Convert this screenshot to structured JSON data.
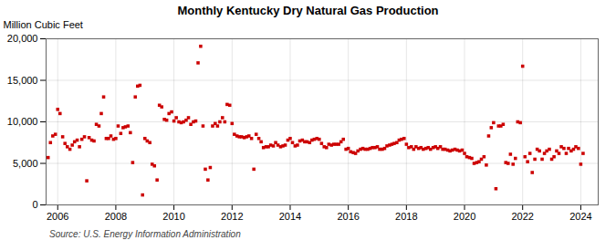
{
  "chart_data": {
    "type": "scatter",
    "title": "Monthly Kentucky Dry Natural Gas Production",
    "ylabel": "Million Cubic Feet",
    "source": "Source: U.S. Energy Information Administration",
    "color": "#cc0000",
    "marker": "square",
    "grid": true,
    "xlim": [
      2005.6,
      2024.6
    ],
    "xticks": [
      2006,
      2008,
      2010,
      2012,
      2014,
      2016,
      2018,
      2020,
      2022,
      2024
    ],
    "ylim": [
      0,
      20000
    ],
    "yticks": [
      0,
      {
        "value": 5000,
        "label": "5,000"
      },
      {
        "value": 10000,
        "label": "10,000"
      },
      {
        "value": 15000,
        "label": "15,000"
      },
      {
        "value": 20000,
        "label": "20,000"
      }
    ],
    "x": [
      2005.67,
      2005.75,
      2005.83,
      2005.92,
      2006.0,
      2006.08,
      2006.17,
      2006.25,
      2006.33,
      2006.42,
      2006.5,
      2006.58,
      2006.67,
      2006.75,
      2006.83,
      2006.92,
      2007.0,
      2007.08,
      2007.17,
      2007.25,
      2007.33,
      2007.42,
      2007.5,
      2007.58,
      2007.67,
      2007.75,
      2007.83,
      2007.92,
      2008.0,
      2008.08,
      2008.17,
      2008.25,
      2008.33,
      2008.42,
      2008.5,
      2008.58,
      2008.67,
      2008.75,
      2008.83,
      2008.92,
      2009.0,
      2009.08,
      2009.17,
      2009.25,
      2009.33,
      2009.42,
      2009.5,
      2009.58,
      2009.67,
      2009.75,
      2009.83,
      2009.92,
      2010.0,
      2010.08,
      2010.17,
      2010.25,
      2010.33,
      2010.42,
      2010.5,
      2010.58,
      2010.67,
      2010.75,
      2010.83,
      2010.92,
      2011.0,
      2011.08,
      2011.17,
      2011.25,
      2011.33,
      2011.42,
      2011.5,
      2011.58,
      2011.67,
      2011.75,
      2011.83,
      2011.92,
      2012.0,
      2012.08,
      2012.17,
      2012.25,
      2012.33,
      2012.42,
      2012.5,
      2012.58,
      2012.67,
      2012.75,
      2012.83,
      2012.92,
      2013.0,
      2013.08,
      2013.17,
      2013.25,
      2013.33,
      2013.42,
      2013.5,
      2013.58,
      2013.67,
      2013.75,
      2013.83,
      2013.92,
      2014.0,
      2014.08,
      2014.17,
      2014.25,
      2014.33,
      2014.42,
      2014.5,
      2014.58,
      2014.67,
      2014.75,
      2014.83,
      2014.92,
      2015.0,
      2015.08,
      2015.17,
      2015.25,
      2015.33,
      2015.42,
      2015.5,
      2015.58,
      2015.67,
      2015.75,
      2015.83,
      2015.92,
      2016.0,
      2016.08,
      2016.17,
      2016.25,
      2016.33,
      2016.42,
      2016.5,
      2016.58,
      2016.67,
      2016.75,
      2016.83,
      2016.92,
      2017.0,
      2017.08,
      2017.17,
      2017.25,
      2017.33,
      2017.42,
      2017.5,
      2017.58,
      2017.67,
      2017.75,
      2017.83,
      2017.92,
      2018.0,
      2018.08,
      2018.17,
      2018.25,
      2018.33,
      2018.42,
      2018.5,
      2018.58,
      2018.67,
      2018.75,
      2018.83,
      2018.92,
      2019.0,
      2019.08,
      2019.17,
      2019.25,
      2019.33,
      2019.42,
      2019.5,
      2019.58,
      2019.67,
      2019.75,
      2019.83,
      2019.92,
      2020.0,
      2020.08,
      2020.17,
      2020.25,
      2020.33,
      2020.42,
      2020.5,
      2020.58,
      2020.67,
      2020.75,
      2020.83,
      2020.92,
      2021.0,
      2021.08,
      2021.17,
      2021.25,
      2021.33,
      2021.42,
      2021.5,
      2021.58,
      2021.67,
      2021.75,
      2021.83,
      2021.92,
      2022.0,
      2022.08,
      2022.17,
      2022.25,
      2022.33,
      2022.42,
      2022.5,
      2022.58,
      2022.67,
      2022.75,
      2022.83,
      2022.92,
      2023.0,
      2023.08,
      2023.17,
      2023.25,
      2023.33,
      2023.42,
      2023.5,
      2023.58,
      2023.67,
      2023.75,
      2023.83,
      2023.92,
      2024.0,
      2024.08
    ],
    "values": [
      5700,
      7500,
      8300,
      8500,
      11500,
      11000,
      8200,
      7400,
      7000,
      6700,
      7200,
      7600,
      7800,
      7000,
      7900,
      8200,
      2900,
      8100,
      7800,
      7700,
      9700,
      9500,
      11000,
      13000,
      8000,
      8000,
      8300,
      7900,
      8000,
      9500,
      8600,
      9300,
      9400,
      9500,
      8700,
      5100,
      13000,
      14300,
      14400,
      1200,
      8000,
      7700,
      7500,
      4900,
      4700,
      3000,
      12000,
      11800,
      10300,
      10200,
      11000,
      11200,
      10100,
      10500,
      10000,
      9900,
      10000,
      10200,
      10500,
      9700,
      10000,
      10100,
      17100,
      19100,
      9500,
      4300,
      3000,
      4500,
      9500,
      9800,
      9500,
      10000,
      10500,
      10000,
      12100,
      12000,
      9800,
      8500,
      8300,
      8200,
      8200,
      8100,
      8200,
      8300,
      8000,
      4300,
      8500,
      8000,
      7600,
      6900,
      7000,
      7000,
      7200,
      7100,
      7500,
      7200,
      7000,
      7100,
      7200,
      7800,
      8000,
      7500,
      7100,
      7200,
      7700,
      7800,
      7600,
      7600,
      7500,
      7800,
      7900,
      8000,
      7900,
      7400,
      7000,
      6900,
      7300,
      7200,
      7300,
      7300,
      7300,
      7600,
      7900,
      6700,
      6800,
      6400,
      6300,
      6200,
      6500,
      6700,
      6800,
      6700,
      6700,
      6800,
      6900,
      6900,
      7000,
      6700,
      6700,
      6800,
      7100,
      7200,
      7300,
      7400,
      7500,
      7800,
      7900,
      8000,
      7300,
      6900,
      7000,
      6700,
      7000,
      6800,
      6900,
      6700,
      6800,
      6900,
      6700,
      6900,
      7000,
      6800,
      7000,
      6700,
      6700,
      6600,
      6500,
      6600,
      6700,
      6600,
      6500,
      6600,
      6200,
      5800,
      5700,
      5600,
      5000,
      5100,
      5200,
      5500,
      5800,
      4800,
      8300,
      9300,
      9900,
      1950,
      9500,
      9500,
      9700,
      5100,
      5000,
      6100,
      4900,
      5600,
      10000,
      9900,
      16700,
      5800,
      5200,
      6200,
      3900,
      5500,
      6700,
      6500,
      5500,
      6200,
      6500,
      6700,
      5500,
      5800,
      6500,
      6200,
      7000,
      6800,
      6200,
      6800,
      6500,
      6700,
      7000,
      6800,
      4900,
      6200
    ]
  }
}
